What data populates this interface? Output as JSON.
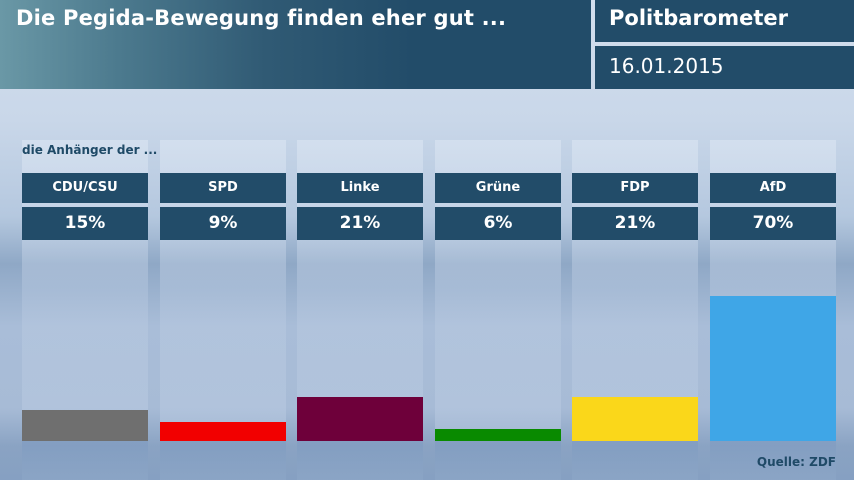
{
  "header": {
    "title": "Die Pegida-Bewegung finden eher gut ...",
    "brand": "Politbarometer",
    "date": "16.01.2015"
  },
  "subtitle": "die Anhänger der ...",
  "source": "Quelle: ZDF",
  "chart_data": {
    "type": "bar",
    "title": "Die Pegida-Bewegung finden eher gut ...",
    "subtitle": "die Anhänger der ...",
    "categories": [
      "CDU/CSU",
      "SPD",
      "Linke",
      "Grüne",
      "FDP",
      "AfD"
    ],
    "values": [
      15,
      9,
      21,
      6,
      21,
      70
    ],
    "value_labels": [
      "15%",
      "9%",
      "21%",
      "6%",
      "21%",
      "70%"
    ],
    "colors": [
      "#6f6f6f",
      "#f20000",
      "#6e003a",
      "#098a00",
      "#fad71a",
      "#3fa6e7"
    ],
    "unit": "%",
    "ylim": [
      0,
      100
    ],
    "xlabel": "",
    "ylabel": "",
    "grid": false,
    "legend": "none"
  }
}
